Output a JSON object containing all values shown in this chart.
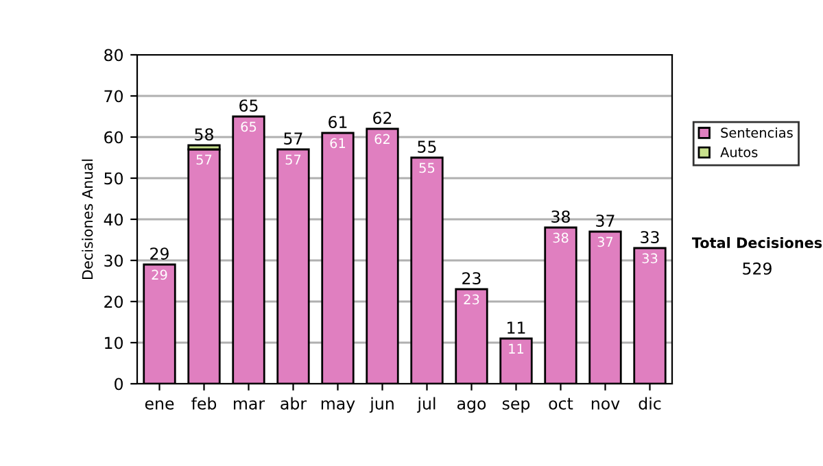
{
  "chart_data": {
    "type": "bar",
    "stacked": true,
    "ylabel": "Decisiones Anual",
    "categories": [
      "ene",
      "feb",
      "mar",
      "abr",
      "may",
      "jun",
      "jul",
      "ago",
      "sep",
      "oct",
      "nov",
      "dic"
    ],
    "series": [
      {
        "name": "Sentencias",
        "color": "#e07fc0",
        "values": [
          29,
          57,
          65,
          57,
          61,
          62,
          55,
          23,
          11,
          38,
          37,
          33
        ],
        "value_labels": [
          "29",
          "57",
          "65",
          "57",
          "61",
          "62",
          "55",
          "23",
          "11",
          "38",
          "37",
          "33"
        ]
      },
      {
        "name": "Autos",
        "color": "#c8e08c",
        "values": [
          null,
          1,
          null,
          null,
          null,
          null,
          null,
          null,
          null,
          null,
          null,
          null
        ]
      }
    ],
    "totals": [
      "29",
      "58",
      "65",
      "57",
      "61",
      "62",
      "55",
      "23",
      "11",
      "38",
      "37",
      "33"
    ],
    "ylim": [
      0,
      80
    ],
    "yticks": [
      0,
      10,
      20,
      30,
      40,
      50,
      60,
      70,
      80
    ],
    "grid": "y",
    "legend": "right",
    "annotations": [
      "Total Decisiones",
      "529"
    ]
  }
}
